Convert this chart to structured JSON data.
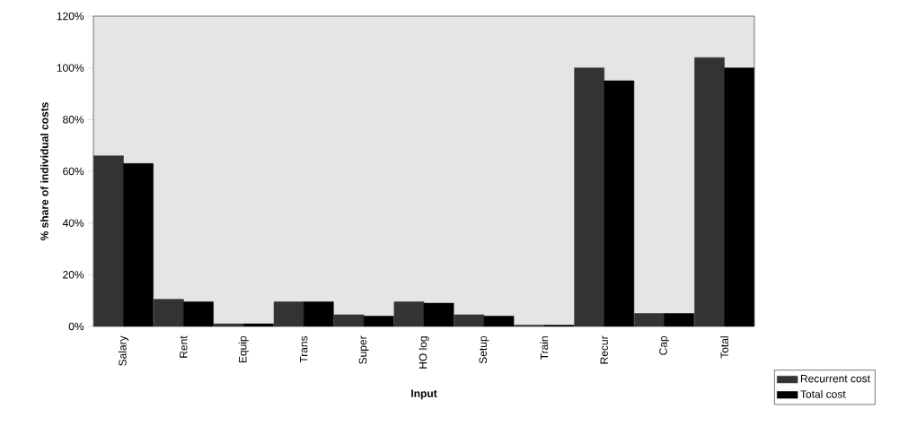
{
  "chart_data": {
    "type": "bar",
    "xlabel": "Input",
    "ylabel": "% share of individual costs",
    "categories": [
      "Salary",
      "Rent",
      "Equip",
      "Trans",
      "Super",
      "HO log",
      "Setup",
      "Train",
      "Recur",
      "Cap",
      "Total"
    ],
    "series": [
      {
        "name": "Recurrent cost",
        "color": "#333333",
        "values": [
          66,
          10.5,
          1,
          9.5,
          4.5,
          9.5,
          4.5,
          0.5,
          100,
          5,
          104
        ]
      },
      {
        "name": "Total cost",
        "color": "#000000",
        "values": [
          63,
          9.5,
          1,
          9.5,
          4,
          9,
          4,
          0.5,
          95,
          5,
          100
        ]
      }
    ],
    "ylim": [
      0,
      120
    ],
    "yticks": [
      {
        "value": 0,
        "label": "0%"
      },
      {
        "value": 20,
        "label": "20%"
      },
      {
        "value": 40,
        "label": "40%"
      },
      {
        "value": 60,
        "label": "60%"
      },
      {
        "value": 80,
        "label": "80%"
      },
      {
        "value": 100,
        "label": "100%"
      },
      {
        "value": 120,
        "label": "120%"
      }
    ],
    "grid": false,
    "legend": "bottom right"
  }
}
